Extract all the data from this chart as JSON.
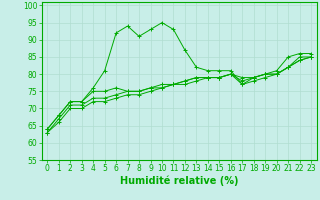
{
  "xlabel": "Humidité relative (%)",
  "background_color": "#c8eee8",
  "grid_color": "#b0ddd0",
  "line_color": "#00aa00",
  "x_values": [
    0,
    1,
    2,
    3,
    4,
    5,
    6,
    7,
    8,
    9,
    10,
    11,
    12,
    13,
    14,
    15,
    16,
    17,
    18,
    19,
    20,
    21,
    22,
    23
  ],
  "series": {
    "s1": [
      64,
      68,
      72,
      72,
      76,
      81,
      92,
      94,
      91,
      93,
      95,
      93,
      87,
      82,
      81,
      81,
      81,
      77,
      79,
      80,
      81,
      85,
      86,
      86
    ],
    "s2": [
      64,
      68,
      72,
      72,
      75,
      75,
      76,
      75,
      75,
      76,
      76,
      77,
      78,
      79,
      79,
      79,
      80,
      79,
      79,
      80,
      80,
      82,
      85,
      85
    ],
    "s3": [
      63,
      67,
      71,
      71,
      73,
      73,
      74,
      75,
      75,
      76,
      77,
      77,
      78,
      79,
      79,
      79,
      80,
      78,
      79,
      80,
      80,
      82,
      84,
      85
    ],
    "s4": [
      63,
      66,
      70,
      70,
      72,
      72,
      73,
      74,
      74,
      75,
      76,
      77,
      77,
      78,
      79,
      79,
      80,
      77,
      78,
      79,
      80,
      82,
      84,
      85
    ]
  },
  "ylim": [
    55,
    101
  ],
  "xlim": [
    -0.5,
    23.5
  ],
  "yticks": [
    55,
    60,
    65,
    70,
    75,
    80,
    85,
    90,
    95,
    100
  ],
  "xticks": [
    0,
    1,
    2,
    3,
    4,
    5,
    6,
    7,
    8,
    9,
    10,
    11,
    12,
    13,
    14,
    15,
    16,
    17,
    18,
    19,
    20,
    21,
    22,
    23
  ],
  "tick_fontsize": 5.5,
  "xlabel_fontsize": 7,
  "marker": "+"
}
